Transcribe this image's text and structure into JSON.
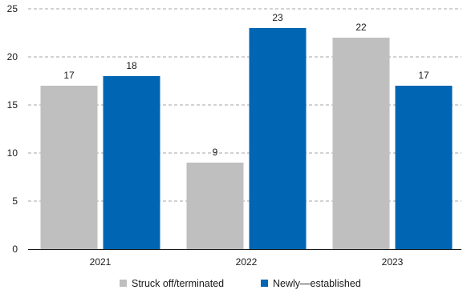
{
  "chart_data": {
    "type": "bar",
    "categories": [
      "2021",
      "2022",
      "2023"
    ],
    "series": [
      {
        "name": "Struck off/terminated",
        "values": [
          17,
          9,
          22
        ],
        "color": "#bfbfbf"
      },
      {
        "name": "Newly—established",
        "values": [
          18,
          23,
          17
        ],
        "color": "#0066b3"
      }
    ],
    "yticks": [
      0,
      5,
      10,
      15,
      20,
      25
    ],
    "ylim": [
      0,
      25
    ],
    "grid": true,
    "legend": "bottom",
    "title": "",
    "xlabel": "",
    "ylabel": ""
  }
}
